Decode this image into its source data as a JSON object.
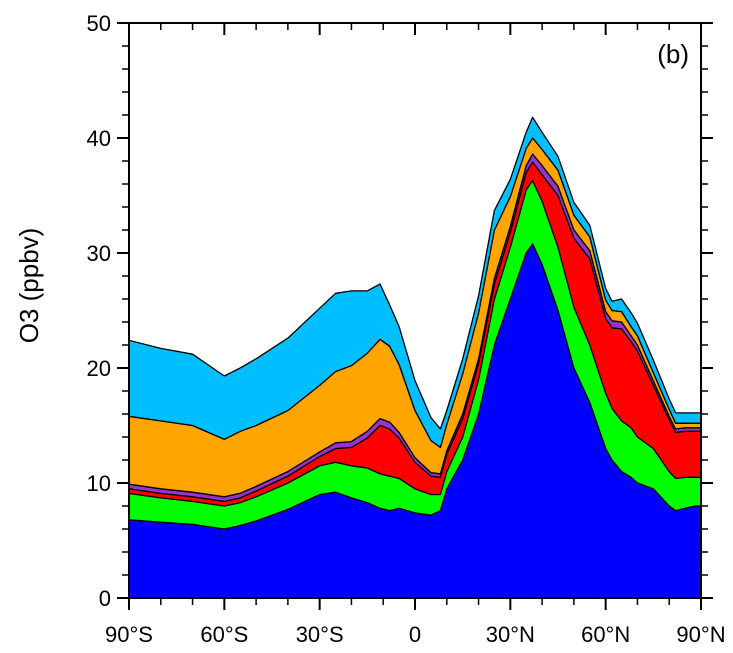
{
  "chart_data": {
    "type": "area",
    "stacked": true,
    "panel_label": "(b)",
    "title": "",
    "xlabel": "",
    "ylabel": "O3 (ppbv)",
    "xlim": [
      -90,
      90
    ],
    "ylim": [
      0,
      50
    ],
    "grid": false,
    "x_ticks": [
      -90,
      -60,
      -30,
      0,
      30,
      60,
      90
    ],
    "x_tick_labels": [
      "90°S",
      "60°S",
      "30°S",
      "0",
      "30°N",
      "60°N",
      "90°N"
    ],
    "y_ticks": [
      0,
      10,
      20,
      30,
      40,
      50
    ],
    "y_tick_labels": [
      "0",
      "10",
      "20",
      "30",
      "40",
      "50"
    ],
    "x": [
      -90,
      -80,
      -70,
      -60,
      -55,
      -50,
      -40,
      -30,
      -25,
      -20,
      -15,
      -11,
      -8,
      -5,
      0,
      5,
      8,
      10,
      15,
      20,
      25,
      30,
      35,
      37,
      40,
      45,
      50,
      55,
      60,
      62,
      65,
      68,
      70,
      75,
      80,
      82,
      85,
      88,
      90
    ],
    "series": [
      {
        "color": "#0000ff",
        "values": [
          6.8,
          6.6,
          6.4,
          6.0,
          6.3,
          6.7,
          7.7,
          9.0,
          9.2,
          8.7,
          8.3,
          7.8,
          7.6,
          7.8,
          7.4,
          7.2,
          7.6,
          9.5,
          12.0,
          16.0,
          22.0,
          26.0,
          30.0,
          30.8,
          29.0,
          25.0,
          20.0,
          17.0,
          13.0,
          12.0,
          11.0,
          10.5,
          10.0,
          9.5,
          8.0,
          7.6,
          7.8,
          8.0,
          8.0
        ]
      },
      {
        "color": "#00ff00",
        "values": [
          2.3,
          2.1,
          2.0,
          2.0,
          2.0,
          2.1,
          2.3,
          2.5,
          2.6,
          2.8,
          3.0,
          3.0,
          3.0,
          2.6,
          2.1,
          1.8,
          1.4,
          1.5,
          2.0,
          3.0,
          4.0,
          4.5,
          5.5,
          5.5,
          5.5,
          5.5,
          5.3,
          5.0,
          4.8,
          4.5,
          4.4,
          4.3,
          4.0,
          3.5,
          3.0,
          2.8,
          2.7,
          2.5,
          2.5
        ]
      },
      {
        "color": "#ff0000",
        "values": [
          0.4,
          0.4,
          0.4,
          0.4,
          0.4,
          0.5,
          0.6,
          0.8,
          1.2,
          1.6,
          2.6,
          4.2,
          4.1,
          3.5,
          2.3,
          1.6,
          1.5,
          1.5,
          1.6,
          1.4,
          1.3,
          1.3,
          1.5,
          1.6,
          2.3,
          4.5,
          6.0,
          7.5,
          6.5,
          7.0,
          8.0,
          7.5,
          7.5,
          5.5,
          4.5,
          4.0,
          4.0,
          4.0,
          4.0
        ]
      },
      {
        "color": "#9933cc",
        "values": [
          0.4,
          0.4,
          0.4,
          0.4,
          0.4,
          0.4,
          0.4,
          0.4,
          0.5,
          0.5,
          0.6,
          0.6,
          0.6,
          0.5,
          0.4,
          0.3,
          0.3,
          0.3,
          0.4,
          0.4,
          0.5,
          0.5,
          0.6,
          0.7,
          0.8,
          0.8,
          0.7,
          0.7,
          0.6,
          0.6,
          0.6,
          0.5,
          0.5,
          0.4,
          0.3,
          0.3,
          0.3,
          0.3,
          0.3
        ]
      },
      {
        "color": "#ffa500",
        "values": [
          5.9,
          5.9,
          5.8,
          5.0,
          5.4,
          5.3,
          5.3,
          5.8,
          6.2,
          6.6,
          6.8,
          6.9,
          6.6,
          5.9,
          4.1,
          2.8,
          2.3,
          2.3,
          3.5,
          4.0,
          4.2,
          2.6,
          1.5,
          1.4,
          1.4,
          1.4,
          1.3,
          1.2,
          1.0,
          0.9,
          0.9,
          0.8,
          0.8,
          0.7,
          0.6,
          0.5,
          0.4,
          0.4,
          0.4
        ]
      },
      {
        "color": "#00bfff",
        "values": [
          6.6,
          6.3,
          6.2,
          5.5,
          5.5,
          5.8,
          6.3,
          6.7,
          6.8,
          6.5,
          5.4,
          4.8,
          3.6,
          3.3,
          2.6,
          2.0,
          1.6,
          1.2,
          1.3,
          1.5,
          1.7,
          1.5,
          1.4,
          1.8,
          1.5,
          1.2,
          1.1,
          1.0,
          1.0,
          0.8,
          1.1,
          1.2,
          1.1,
          1.1,
          0.9,
          0.9,
          0.9,
          0.9,
          0.9
        ]
      }
    ]
  }
}
